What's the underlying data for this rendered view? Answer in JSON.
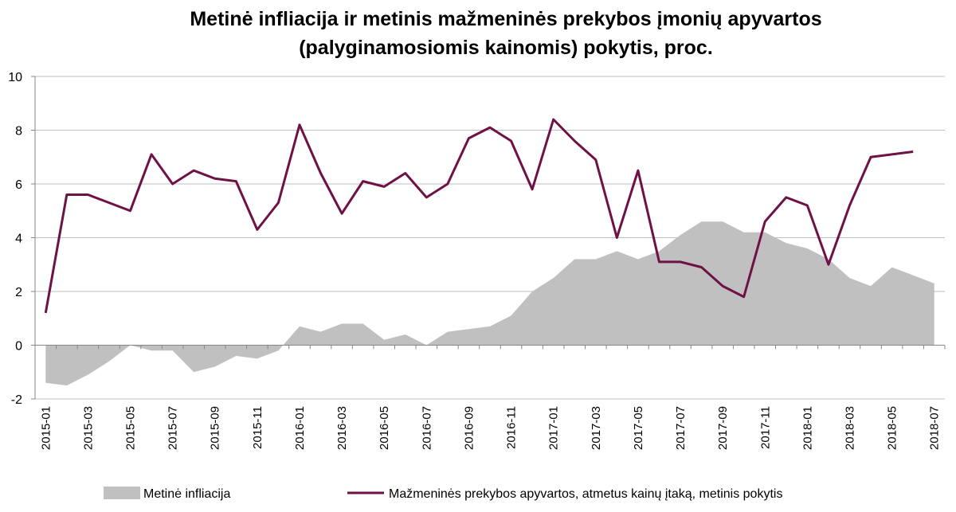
{
  "chart_data": {
    "type": "area",
    "title_lines": [
      "Metinė infliacija ir metinis mažmeninės prekybos įmonių apyvartos",
      "(palyginamosiomis kainomis) pokytis, proc."
    ],
    "x": [
      "2015-01",
      "2015-02",
      "2015-03",
      "2015-04",
      "2015-05",
      "2015-06",
      "2015-07",
      "2015-08",
      "2015-09",
      "2015-10",
      "2015-11",
      "2015-12",
      "2016-01",
      "2016-02",
      "2016-03",
      "2016-04",
      "2016-05",
      "2016-06",
      "2016-07",
      "2016-08",
      "2016-09",
      "2016-10",
      "2016-11",
      "2016-12",
      "2017-01",
      "2017-02",
      "2017-03",
      "2017-04",
      "2017-05",
      "2017-06",
      "2017-07",
      "2017-08",
      "2017-09",
      "2017-10",
      "2017-11",
      "2017-12",
      "2018-01",
      "2018-02",
      "2018-03",
      "2018-04",
      "2018-05",
      "2018-06",
      "2018-07"
    ],
    "x_tick_labels": [
      "2015-01",
      "2015-03",
      "2015-05",
      "2015-07",
      "2015-09",
      "2015-11",
      "2016-01",
      "2016-03",
      "2016-05",
      "2016-07",
      "2016-09",
      "2016-11",
      "2017-01",
      "2017-03",
      "2017-05",
      "2017-07",
      "2017-09",
      "2017-11",
      "2018-01",
      "2018-03",
      "2018-05",
      "2018-07"
    ],
    "ylim": [
      -2,
      10
    ],
    "y_ticks": [
      -2,
      0,
      2,
      4,
      6,
      8,
      10
    ],
    "grid": true,
    "legend_position": "bottom",
    "series": [
      {
        "name": "Metinė infliacija",
        "kind": "area",
        "color": "#c0c0c0",
        "values": [
          -1.4,
          -1.5,
          -1.1,
          -0.6,
          0.0,
          -0.2,
          -0.2,
          -1.0,
          -0.8,
          -0.4,
          -0.5,
          -0.2,
          0.7,
          0.5,
          0.8,
          0.8,
          0.2,
          0.4,
          0.0,
          0.5,
          0.6,
          0.7,
          1.1,
          2.0,
          2.5,
          3.2,
          3.2,
          3.5,
          3.2,
          3.5,
          4.1,
          4.6,
          4.6,
          4.2,
          4.2,
          3.8,
          3.6,
          3.2,
          2.5,
          2.2,
          2.9,
          2.6,
          2.3
        ]
      },
      {
        "name": "Mažmeninės prekybos apyvartos, atmetus kainų įtaką, metinis pokytis",
        "kind": "line",
        "color": "#6e1144",
        "values": [
          1.2,
          5.6,
          5.6,
          5.3,
          5.0,
          7.1,
          6.0,
          6.5,
          6.2,
          6.1,
          4.3,
          5.3,
          8.2,
          6.4,
          4.9,
          6.1,
          5.9,
          6.4,
          5.5,
          6.0,
          7.7,
          8.1,
          7.6,
          5.8,
          8.4,
          7.6,
          6.9,
          4.0,
          6.5,
          3.1,
          3.1,
          2.9,
          2.2,
          1.8,
          4.6,
          5.5,
          5.2,
          3.0,
          5.2,
          7.0,
          7.1,
          7.2,
          null
        ]
      }
    ]
  }
}
